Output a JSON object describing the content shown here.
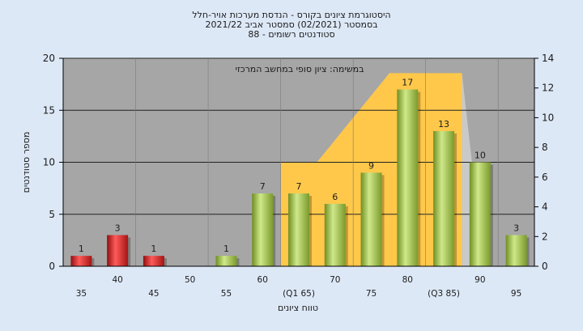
{
  "colors": {
    "background": "#dde8f7",
    "plot_area": "#a6a6a6",
    "band": "#ffc84a",
    "bar_red": "#e02222",
    "bar_green": "#a4c64a"
  },
  "chart_data": {
    "type": "bar",
    "title_lines": [
      "היסטוגרמת ציונים בקורס - הנדסת מערכות אויר-חלל",
      "בסמסטר  (02/2021)  סמסטר אביב 2021/22",
      "סטודנטים רשומים - 88"
    ],
    "annotation": "במשימה: ציון סופי במחשב המרכזי",
    "xlabel": "טווח ציונים",
    "ylabel": "מספר סטודנטים",
    "categories": [
      "35",
      "40",
      "45",
      "50",
      "55",
      "60",
      "(Q1 65)",
      "70",
      "75",
      "80",
      "(Q3 85)",
      "90",
      "95"
    ],
    "values": [
      1,
      3,
      1,
      0,
      1,
      7,
      7,
      6,
      9,
      17,
      13,
      10,
      3
    ],
    "bar_colors": [
      "red",
      "red",
      "red",
      null,
      "green",
      "green",
      "green",
      "green",
      "green",
      "green",
      "green",
      "green",
      "green"
    ],
    "y_left": {
      "ylim": [
        0,
        20
      ],
      "ticks": [
        0,
        5,
        10,
        15,
        20
      ]
    },
    "y_right": {
      "ylim": [
        0,
        14
      ],
      "ticks": [
        0,
        2,
        4,
        6,
        8,
        10,
        12,
        14
      ]
    },
    "band": {
      "upper": [
        7,
        7,
        10,
        13,
        13,
        13
      ],
      "category_start": 6,
      "category_end": 10
    },
    "grid": true
  }
}
